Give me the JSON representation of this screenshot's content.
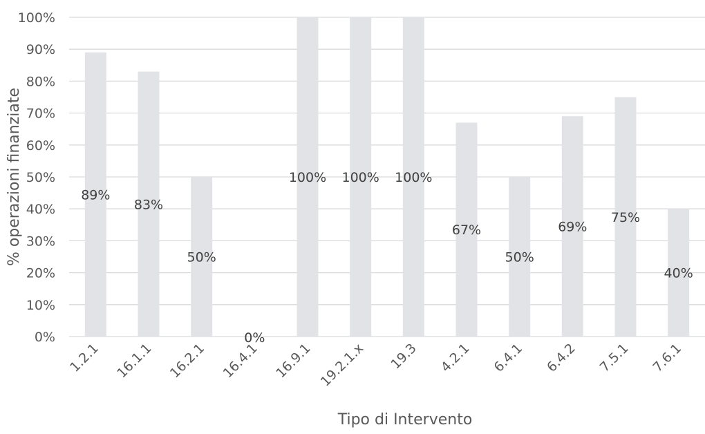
{
  "chart_data": {
    "type": "bar",
    "title": "",
    "xlabel": "Tipo di Intervento",
    "ylabel": "% operazioni finanziate",
    "categories": [
      "1.2.1",
      "16.1.1",
      "16.2.1",
      "16.4.1",
      "16.9.1",
      "19.2.1.x",
      "19.3",
      "4.2.1",
      "6.4.1",
      "6.4.2",
      "7.5.1",
      "7.6.1"
    ],
    "values": [
      89,
      83,
      50,
      0,
      100,
      100,
      100,
      67,
      50,
      69,
      75,
      40
    ],
    "data_labels": [
      "89%",
      "83%",
      "50%",
      "0%",
      "100%",
      "100%",
      "100%",
      "67%",
      "50%",
      "69%",
      "75%",
      "40%"
    ],
    "ylim": [
      0,
      100
    ],
    "yticks": [
      "0%",
      "10%",
      "20%",
      "30%",
      "40%",
      "50%",
      "60%",
      "70%",
      "80%",
      "90%",
      "100%"
    ],
    "grid": true,
    "legend": "none",
    "bar_color": "#e1e3e6"
  }
}
